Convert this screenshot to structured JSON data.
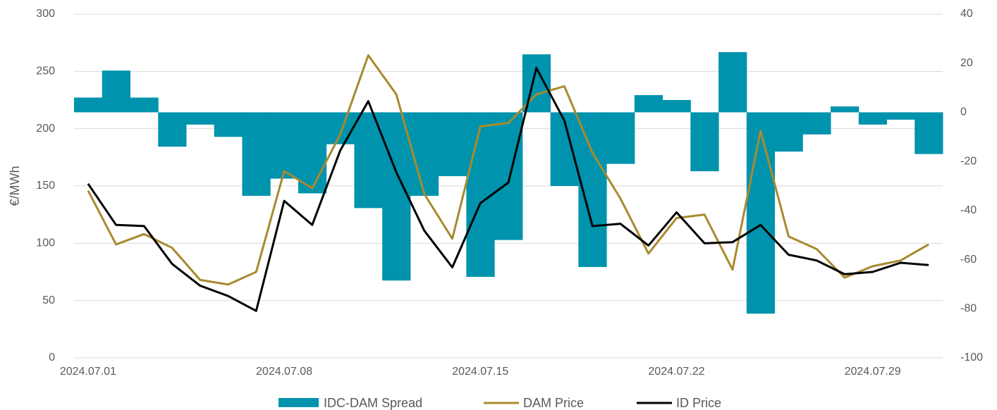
{
  "chart_data": {
    "type": "bar-line",
    "y_label": "€/MWh",
    "categories": [
      "2024.07.01",
      null,
      null,
      null,
      null,
      null,
      null,
      "2024.07.08",
      null,
      null,
      null,
      null,
      null,
      null,
      "2024.07.15",
      null,
      null,
      null,
      null,
      null,
      null,
      "2024.07.22",
      null,
      null,
      null,
      null,
      null,
      null,
      "2024.07.29",
      null,
      null
    ],
    "series": [
      {
        "name": "IDC-DAM Spread",
        "kind": "bar",
        "axis": "y2",
        "color": "#0093ad",
        "values": [
          6,
          17,
          6,
          -14,
          -5,
          -10,
          -34,
          -27,
          -33,
          -13,
          -39,
          -68.5,
          -34,
          -26,
          -67,
          -52,
          23.6,
          -30,
          -63,
          -21,
          7,
          5,
          -24,
          24.5,
          -82,
          -16,
          -9,
          2.4,
          -5,
          -3,
          -17
        ]
      },
      {
        "name": "DAM Price",
        "kind": "line",
        "color": "#a88a2e",
        "values": [
          146,
          99,
          108,
          96,
          68,
          64,
          75,
          163,
          148,
          195,
          264,
          230,
          143,
          104,
          202,
          205,
          230,
          237,
          179,
          139,
          91,
          122,
          125,
          77,
          198,
          106,
          95,
          70,
          80,
          85,
          99
        ]
      },
      {
        "name": "ID Price",
        "kind": "line",
        "color": "#000000",
        "values": [
          152,
          116,
          115,
          82,
          63,
          54,
          41,
          137,
          116,
          181,
          224,
          162,
          111,
          79,
          135,
          153,
          253,
          207,
          115,
          117,
          98,
          127,
          100,
          101,
          116,
          90,
          85,
          73,
          75,
          83,
          81
        ]
      }
    ],
    "ylim": [
      0,
      300
    ],
    "yticks": [
      0,
      50,
      100,
      150,
      200,
      250,
      300
    ],
    "y2lim": [
      -100,
      40
    ],
    "y2ticks": [
      -100,
      -80,
      -60,
      -40,
      -20,
      0,
      20,
      40
    ],
    "grid": true,
    "legend": "bottom"
  }
}
